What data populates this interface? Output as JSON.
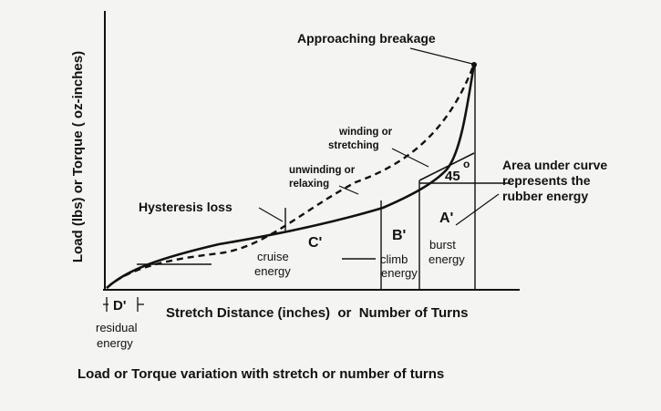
{
  "diagram": {
    "caption": "Load or Torque variation with stretch or number of turns",
    "y_axis_label": "Load (lbs) or Torque ( oz-inches)",
    "x_axis_label": "Stretch Distance (inches)  or  Number of Turns",
    "labels": {
      "approaching_breakage": "Approaching breakage",
      "winding_line1": "winding or",
      "winding_line2": "stretching",
      "unwinding_line1": "unwinding or",
      "unwinding_line2": "relaxing",
      "hysteresis": "Hysteresis loss",
      "area_line1": "Area under curve",
      "area_line2": "represents the",
      "area_line3": "rubber energy",
      "angle": "45",
      "degree_mark": "o",
      "a_prime": "A'",
      "b_prime": "B'",
      "c_prime": "C'",
      "d_prime": "D'",
      "cruise_line1": "cruise",
      "cruise_line2": "energy",
      "climb_line1": "climb",
      "climb_line2": "energy",
      "burst_line1": "burst",
      "burst_line2": "energy",
      "residual_line1": "residual",
      "residual_line2": "energy"
    },
    "colors": {
      "ink": "#111111",
      "paper": "#f4f4f2"
    }
  }
}
